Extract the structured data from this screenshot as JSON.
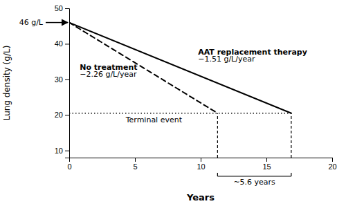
{
  "chart_data": {
    "type": "line",
    "xlabel": "Years",
    "ylabel": "Lung density (g/L)",
    "xlim": [
      0,
      20
    ],
    "ylim": [
      8,
      50
    ],
    "xticks": [
      0,
      5,
      10,
      15,
      20
    ],
    "yticks": [
      10,
      20,
      30,
      40,
      50
    ],
    "series": [
      {
        "name": "AAT replacement therapy",
        "annotation": "−1.51 g/L/year",
        "x": [
          0,
          16.887417218543046
        ],
        "values": [
          46,
          20.5
        ],
        "color": "#000000",
        "line_style": "solid"
      },
      {
        "name": "No treatment",
        "annotation": "−2.26 g/L/year",
        "x": [
          0,
          11.283185840707965
        ],
        "values": [
          46,
          20.5
        ],
        "color": "#000000",
        "line_style": "dashed"
      }
    ],
    "annotations": {
      "start": "46 g/L",
      "terminal": "Terminal event",
      "difference": "~5.6 years"
    }
  }
}
